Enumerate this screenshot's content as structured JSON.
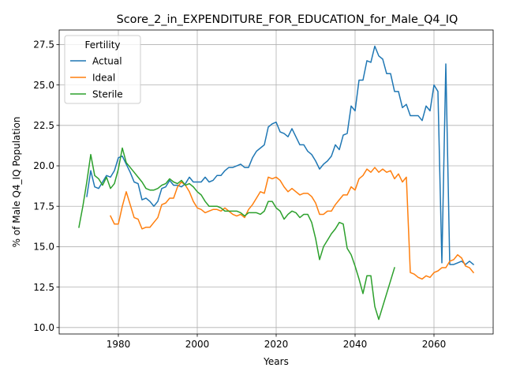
{
  "chart_data": {
    "type": "line",
    "title": "Score_2_in_EXPENDITURE_FOR_EDUCATION_for_Male_Q4_IQ",
    "xlabel": "Years",
    "ylabel": "% of Male Q4_IQ Population",
    "xlim": [
      1965,
      2075
    ],
    "ylim": [
      9.6,
      28.4
    ],
    "x_ticks": [
      1980,
      2000,
      2020,
      2040,
      2060
    ],
    "y_ticks": [
      10.0,
      12.5,
      15.0,
      17.5,
      20.0,
      22.5,
      25.0,
      27.5
    ],
    "grid": true,
    "legend": {
      "title": "Fertility",
      "position": "top-left"
    },
    "series": [
      {
        "name": "Actual",
        "color": "#1f77b4",
        "points": [
          [
            1972,
            18.1
          ],
          [
            1973,
            19.7
          ],
          [
            1974,
            18.7
          ],
          [
            1975,
            18.6
          ],
          [
            1976,
            19.0
          ],
          [
            1977,
            19.4
          ],
          [
            1978,
            19.3
          ],
          [
            1979,
            19.7
          ],
          [
            1980,
            20.5
          ],
          [
            1981,
            20.6
          ],
          [
            1982,
            20.1
          ],
          [
            1983,
            19.6
          ],
          [
            1984,
            19.0
          ],
          [
            1985,
            18.9
          ],
          [
            1986,
            17.9
          ],
          [
            1987,
            18.0
          ],
          [
            1988,
            17.8
          ],
          [
            1989,
            17.5
          ],
          [
            1990,
            17.8
          ],
          [
            1991,
            18.6
          ],
          [
            1992,
            18.7
          ],
          [
            1993,
            19.1
          ],
          [
            1994,
            18.8
          ],
          [
            1995,
            18.8
          ],
          [
            1996,
            18.7
          ],
          [
            1997,
            18.9
          ],
          [
            1998,
            19.3
          ],
          [
            1999,
            19.0
          ],
          [
            2000,
            19.0
          ],
          [
            2001,
            19.0
          ],
          [
            2002,
            19.3
          ],
          [
            2003,
            19.0
          ],
          [
            2004,
            19.1
          ],
          [
            2005,
            19.4
          ],
          [
            2006,
            19.4
          ],
          [
            2007,
            19.7
          ],
          [
            2008,
            19.9
          ],
          [
            2009,
            19.9
          ],
          [
            2010,
            20.0
          ],
          [
            2011,
            20.1
          ],
          [
            2012,
            19.9
          ],
          [
            2013,
            19.9
          ],
          [
            2014,
            20.5
          ],
          [
            2015,
            20.9
          ],
          [
            2016,
            21.1
          ],
          [
            2017,
            21.3
          ],
          [
            2018,
            22.4
          ],
          [
            2019,
            22.6
          ],
          [
            2020,
            22.7
          ],
          [
            2021,
            22.1
          ],
          [
            2022,
            22.0
          ],
          [
            2023,
            21.8
          ],
          [
            2024,
            22.3
          ],
          [
            2025,
            21.8
          ],
          [
            2026,
            21.3
          ],
          [
            2027,
            21.3
          ],
          [
            2028,
            20.9
          ],
          [
            2029,
            20.7
          ],
          [
            2030,
            20.3
          ],
          [
            2031,
            19.8
          ],
          [
            2032,
            20.1
          ],
          [
            2033,
            20.3
          ],
          [
            2034,
            20.6
          ],
          [
            2035,
            21.3
          ],
          [
            2036,
            21.0
          ],
          [
            2037,
            21.9
          ],
          [
            2038,
            22.0
          ],
          [
            2039,
            23.7
          ],
          [
            2040,
            23.4
          ],
          [
            2041,
            25.3
          ],
          [
            2042,
            25.3
          ],
          [
            2043,
            26.5
          ],
          [
            2044,
            26.4
          ],
          [
            2045,
            27.4
          ],
          [
            2046,
            26.8
          ],
          [
            2047,
            26.6
          ],
          [
            2048,
            25.7
          ],
          [
            2049,
            25.7
          ],
          [
            2050,
            24.6
          ],
          [
            2051,
            24.6
          ],
          [
            2052,
            23.6
          ],
          [
            2053,
            23.8
          ],
          [
            2054,
            23.1
          ],
          [
            2055,
            23.1
          ],
          [
            2056,
            23.1
          ],
          [
            2057,
            22.8
          ],
          [
            2058,
            23.7
          ],
          [
            2059,
            23.4
          ],
          [
            2060,
            25.0
          ],
          [
            2061,
            24.6
          ],
          [
            2062,
            14.0
          ],
          [
            2063,
            26.3
          ],
          [
            2064,
            13.9
          ],
          [
            2065,
            13.9
          ],
          [
            2066,
            14.0
          ],
          [
            2067,
            14.1
          ],
          [
            2068,
            13.9
          ],
          [
            2069,
            14.1
          ],
          [
            2070,
            13.9
          ]
        ]
      },
      {
        "name": "Ideal",
        "color": "#ff7f0e",
        "points": [
          [
            1978,
            16.9
          ],
          [
            1979,
            16.4
          ],
          [
            1980,
            16.4
          ],
          [
            1981,
            17.5
          ],
          [
            1982,
            18.4
          ],
          [
            1983,
            17.6
          ],
          [
            1984,
            16.8
          ],
          [
            1985,
            16.7
          ],
          [
            1986,
            16.1
          ],
          [
            1987,
            16.2
          ],
          [
            1988,
            16.2
          ],
          [
            1989,
            16.5
          ],
          [
            1990,
            16.8
          ],
          [
            1991,
            17.6
          ],
          [
            1992,
            17.7
          ],
          [
            1993,
            18.0
          ],
          [
            1994,
            18.0
          ],
          [
            1995,
            18.7
          ],
          [
            1996,
            19.0
          ],
          [
            1997,
            18.8
          ],
          [
            1998,
            18.4
          ],
          [
            1999,
            17.8
          ],
          [
            2000,
            17.4
          ],
          [
            2001,
            17.3
          ],
          [
            2002,
            17.1
          ],
          [
            2003,
            17.2
          ],
          [
            2004,
            17.3
          ],
          [
            2005,
            17.3
          ],
          [
            2006,
            17.2
          ],
          [
            2007,
            17.4
          ],
          [
            2008,
            17.2
          ],
          [
            2009,
            17.0
          ],
          [
            2010,
            16.9
          ],
          [
            2011,
            17.0
          ],
          [
            2012,
            16.8
          ],
          [
            2013,
            17.3
          ],
          [
            2014,
            17.6
          ],
          [
            2015,
            18.0
          ],
          [
            2016,
            18.4
          ],
          [
            2017,
            18.3
          ],
          [
            2018,
            19.3
          ],
          [
            2019,
            19.2
          ],
          [
            2020,
            19.3
          ],
          [
            2021,
            19.1
          ],
          [
            2022,
            18.7
          ],
          [
            2023,
            18.4
          ],
          [
            2024,
            18.6
          ],
          [
            2025,
            18.4
          ],
          [
            2026,
            18.2
          ],
          [
            2027,
            18.3
          ],
          [
            2028,
            18.3
          ],
          [
            2029,
            18.1
          ],
          [
            2030,
            17.7
          ],
          [
            2031,
            17.0
          ],
          [
            2032,
            17.0
          ],
          [
            2033,
            17.2
          ],
          [
            2034,
            17.2
          ],
          [
            2035,
            17.6
          ],
          [
            2036,
            17.9
          ],
          [
            2037,
            18.2
          ],
          [
            2038,
            18.2
          ],
          [
            2039,
            18.7
          ],
          [
            2040,
            18.5
          ],
          [
            2041,
            19.2
          ],
          [
            2042,
            19.4
          ],
          [
            2043,
            19.8
          ],
          [
            2044,
            19.6
          ],
          [
            2045,
            19.9
          ],
          [
            2046,
            19.6
          ],
          [
            2047,
            19.8
          ],
          [
            2048,
            19.6
          ],
          [
            2049,
            19.7
          ],
          [
            2050,
            19.2
          ],
          [
            2051,
            19.5
          ],
          [
            2052,
            19.0
          ],
          [
            2053,
            19.3
          ],
          [
            2054,
            13.4
          ],
          [
            2055,
            13.3
          ],
          [
            2056,
            13.1
          ],
          [
            2057,
            13.0
          ],
          [
            2058,
            13.2
          ],
          [
            2059,
            13.1
          ],
          [
            2060,
            13.4
          ],
          [
            2061,
            13.5
          ],
          [
            2062,
            13.7
          ],
          [
            2063,
            13.7
          ],
          [
            2064,
            14.1
          ],
          [
            2065,
            14.2
          ],
          [
            2066,
            14.5
          ],
          [
            2067,
            14.3
          ],
          [
            2068,
            13.8
          ],
          [
            2069,
            13.7
          ],
          [
            2070,
            13.4
          ]
        ]
      },
      {
        "name": "Sterile",
        "color": "#2ca02c",
        "points": [
          [
            1970,
            16.2
          ],
          [
            1971,
            17.5
          ],
          [
            1972,
            19.0
          ],
          [
            1973,
            20.7
          ],
          [
            1974,
            19.4
          ],
          [
            1975,
            19.2
          ],
          [
            1976,
            18.8
          ],
          [
            1977,
            19.3
          ],
          [
            1978,
            18.6
          ],
          [
            1979,
            18.9
          ],
          [
            1980,
            19.8
          ],
          [
            1981,
            21.1
          ],
          [
            1982,
            20.2
          ],
          [
            1983,
            19.9
          ],
          [
            1984,
            19.6
          ],
          [
            1985,
            19.3
          ],
          [
            1986,
            19.0
          ],
          [
            1987,
            18.6
          ],
          [
            1988,
            18.5
          ],
          [
            1989,
            18.5
          ],
          [
            1990,
            18.6
          ],
          [
            1991,
            18.8
          ],
          [
            1992,
            18.9
          ],
          [
            1993,
            19.2
          ],
          [
            1994,
            19.0
          ],
          [
            1995,
            18.9
          ],
          [
            1996,
            19.1
          ],
          [
            1997,
            18.8
          ],
          [
            1998,
            18.9
          ],
          [
            1999,
            18.7
          ],
          [
            2000,
            18.4
          ],
          [
            2001,
            18.2
          ],
          [
            2002,
            17.8
          ],
          [
            2003,
            17.5
          ],
          [
            2004,
            17.5
          ],
          [
            2005,
            17.5
          ],
          [
            2006,
            17.4
          ],
          [
            2007,
            17.2
          ],
          [
            2008,
            17.2
          ],
          [
            2009,
            17.2
          ],
          [
            2010,
            17.2
          ],
          [
            2011,
            17.1
          ],
          [
            2012,
            16.9
          ],
          [
            2013,
            17.1
          ],
          [
            2014,
            17.1
          ],
          [
            2015,
            17.1
          ],
          [
            2016,
            17.0
          ],
          [
            2017,
            17.2
          ],
          [
            2018,
            17.8
          ],
          [
            2019,
            17.8
          ],
          [
            2020,
            17.4
          ],
          [
            2021,
            17.2
          ],
          [
            2022,
            16.7
          ],
          [
            2023,
            17.0
          ],
          [
            2024,
            17.2
          ],
          [
            2025,
            17.1
          ],
          [
            2026,
            16.8
          ],
          [
            2027,
            17.0
          ],
          [
            2028,
            17.0
          ],
          [
            2029,
            16.5
          ],
          [
            2030,
            15.5
          ],
          [
            2031,
            14.2
          ],
          [
            2032,
            15.0
          ],
          [
            2033,
            15.4
          ],
          [
            2034,
            15.8
          ],
          [
            2035,
            16.1
          ],
          [
            2036,
            16.5
          ],
          [
            2037,
            16.4
          ],
          [
            2038,
            14.9
          ],
          [
            2039,
            14.5
          ],
          [
            2040,
            13.8
          ],
          [
            2041,
            13.0
          ],
          [
            2042,
            12.1
          ],
          [
            2043,
            13.2
          ],
          [
            2044,
            13.2
          ],
          [
            2045,
            11.3
          ],
          [
            2046,
            10.5
          ],
          [
            2047,
            11.3
          ],
          [
            2048,
            12.1
          ],
          [
            2049,
            12.9
          ],
          [
            2050,
            13.7
          ]
        ]
      }
    ]
  }
}
